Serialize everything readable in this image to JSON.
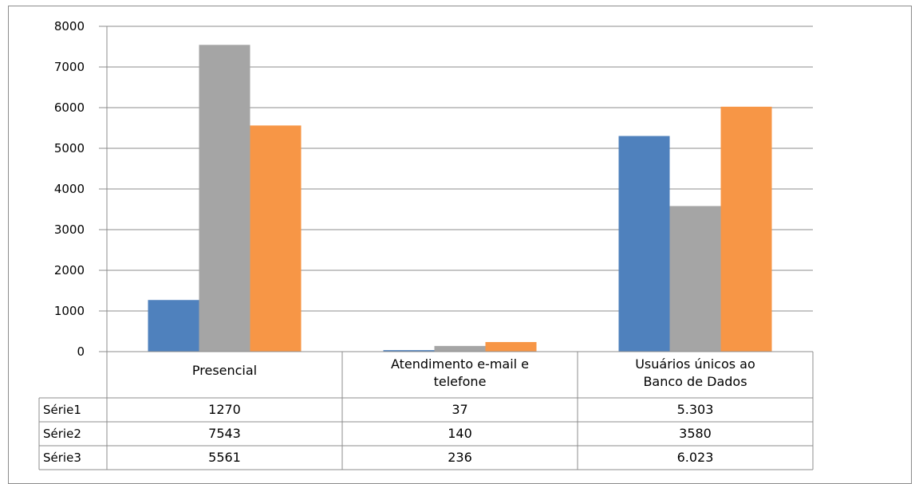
{
  "chart_data": {
    "type": "bar",
    "categories": [
      [
        "Presencial"
      ],
      [
        "Atendimento e-mail e",
        "telefone"
      ],
      [
        "Usuários únicos ao",
        "Banco de Dados"
      ]
    ],
    "series": [
      {
        "name": "Série1",
        "values": [
          1270,
          37,
          5303
        ],
        "labels": [
          "1270",
          "37",
          "5.303"
        ],
        "color": "#4f81bd"
      },
      {
        "name": "Série2",
        "values": [
          7543,
          140,
          3580
        ],
        "labels": [
          "7543",
          "140",
          "3580"
        ],
        "color": "#a5a5a5"
      },
      {
        "name": "Série3",
        "values": [
          5561,
          236,
          6023
        ],
        "labels": [
          "5561",
          "236",
          "6.023"
        ],
        "color": "#f79646"
      }
    ],
    "ylim": [
      0,
      8000
    ],
    "yticks": [
      0,
      1000,
      2000,
      3000,
      4000,
      5000,
      6000,
      7000,
      8000
    ],
    "grid": true,
    "legend": "data-table"
  }
}
